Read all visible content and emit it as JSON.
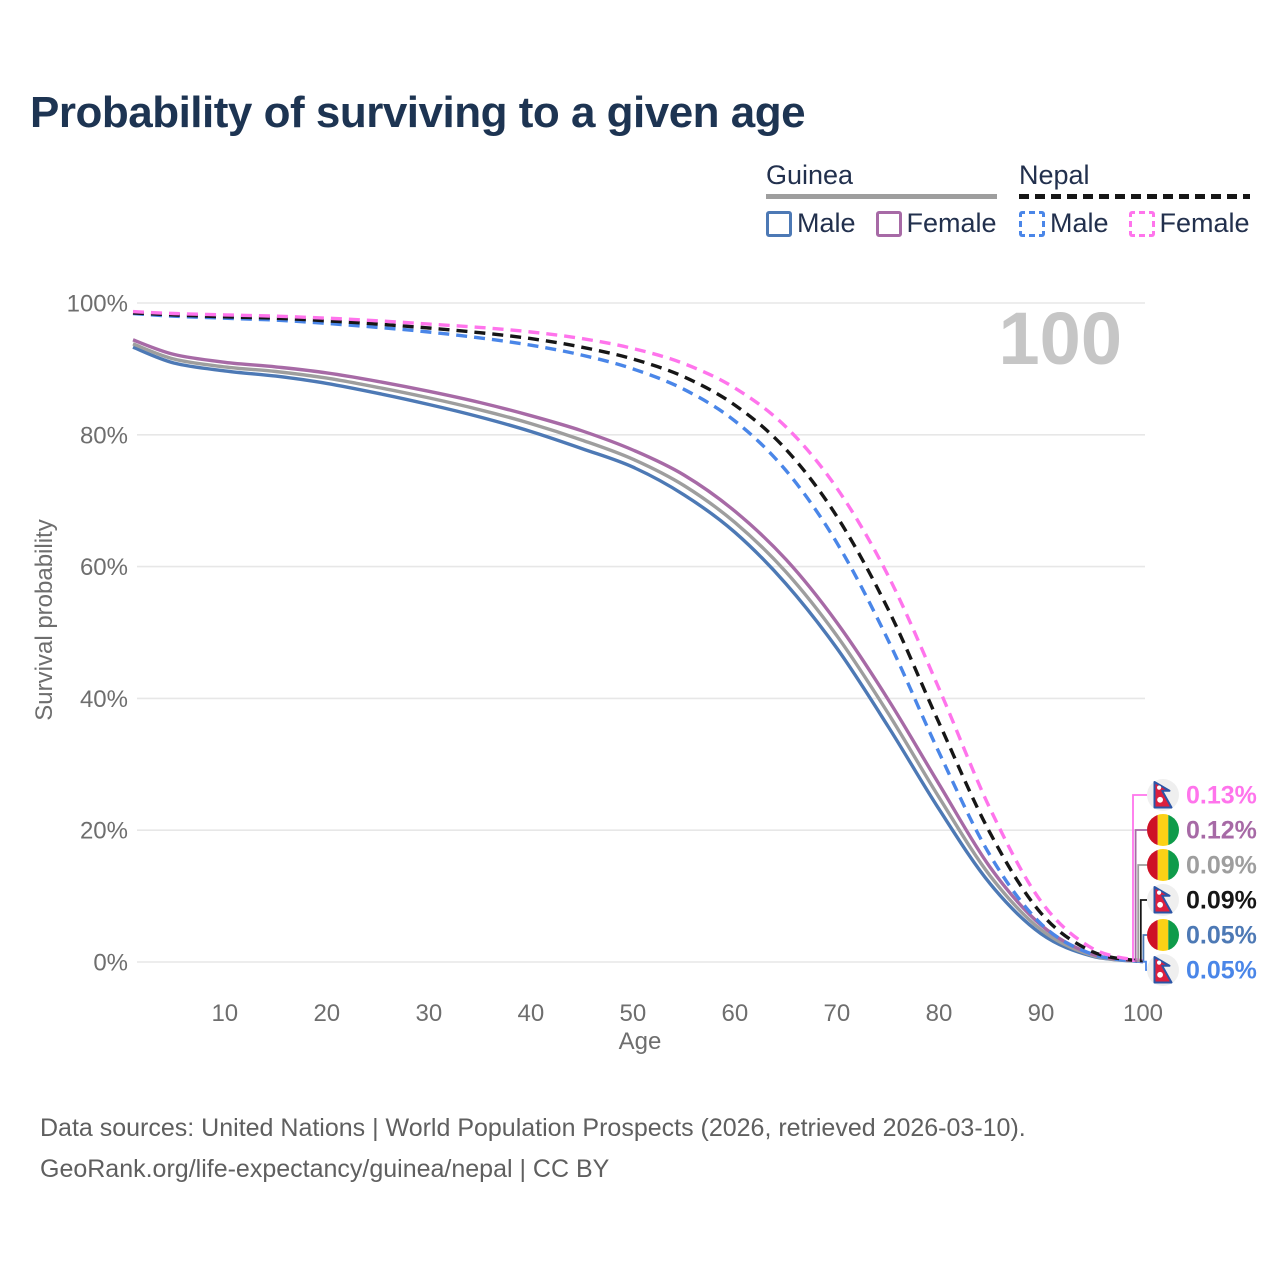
{
  "title": "Probability of surviving to a given age",
  "watermark": "100",
  "legend": {
    "groups": [
      {
        "title": "Guinea",
        "line_style": "solid",
        "underline_color": "#9e9e9e",
        "items": [
          {
            "label": "Male",
            "color": "#4d79b5"
          },
          {
            "label": "Female",
            "color": "#a76aa6"
          }
        ]
      },
      {
        "title": "Nepal",
        "line_style": "dashed",
        "underline_color": "#161616",
        "items": [
          {
            "label": "Male",
            "color": "#4a86e8"
          },
          {
            "label": "Female",
            "color": "#ff74ec"
          }
        ]
      }
    ]
  },
  "chart_data": {
    "type": "line",
    "title": "Probability of surviving to a given age",
    "xlabel": "Age",
    "ylabel": "Survival probability",
    "xlim": [
      1,
      100
    ],
    "ylim": [
      0,
      100
    ],
    "grid": "horizontal",
    "x_ticks": [
      10,
      20,
      30,
      40,
      50,
      60,
      70,
      80,
      90,
      100
    ],
    "y_tick_values": [
      0,
      20,
      40,
      60,
      80,
      100
    ],
    "y_tick_labels": [
      "0%",
      "20%",
      "40%",
      "60%",
      "80%",
      "100%"
    ],
    "x": [
      1,
      5,
      10,
      15,
      20,
      25,
      30,
      35,
      40,
      45,
      50,
      55,
      60,
      65,
      70,
      75,
      80,
      85,
      90,
      95,
      100
    ],
    "series": [
      {
        "name": "Guinea Male",
        "country": "Guinea",
        "sex": "Male",
        "color": "#4d79b5",
        "dashed": false,
        "values": [
          93.3,
          90.9,
          89.7,
          88.9,
          87.8,
          86.3,
          84.6,
          82.7,
          80.5,
          77.9,
          75.1,
          70.9,
          65.2,
          57.4,
          47.6,
          35.8,
          23.2,
          11.9,
          4.3,
          0.9,
          0.05
        ]
      },
      {
        "name": "Guinea",
        "country": "Guinea",
        "sex": "Both",
        "color": "#9e9e9e",
        "dashed": false,
        "values": [
          93.8,
          91.5,
          90.3,
          89.6,
          88.6,
          87.2,
          85.6,
          83.8,
          81.7,
          79.2,
          76.3,
          72.3,
          66.7,
          59.2,
          49.5,
          37.8,
          25.0,
          13.1,
          4.9,
          1.0,
          0.09
        ]
      },
      {
        "name": "Guinea Female",
        "country": "Guinea",
        "sex": "Female",
        "color": "#a76aa6",
        "dashed": false,
        "values": [
          94.4,
          92.2,
          91.0,
          90.3,
          89.4,
          88.1,
          86.6,
          84.9,
          82.9,
          80.6,
          77.7,
          73.9,
          68.4,
          61.1,
          51.5,
          39.9,
          27.0,
          14.4,
          5.6,
          1.2,
          0.12
        ]
      },
      {
        "name": "Nepal Male",
        "country": "Nepal",
        "sex": "Male",
        "color": "#4a86e8",
        "dashed": true,
        "values": [
          98.4,
          98.0,
          97.7,
          97.4,
          96.9,
          96.3,
          95.6,
          94.7,
          93.6,
          92.1,
          90.0,
          86.9,
          82.1,
          74.6,
          63.6,
          48.9,
          31.8,
          16.2,
          5.8,
          1.2,
          0.05
        ]
      },
      {
        "name": "Nepal",
        "country": "Nepal",
        "sex": "Both",
        "color": "#161616",
        "dashed": true,
        "values": [
          98.5,
          98.2,
          97.9,
          97.7,
          97.3,
          96.8,
          96.2,
          95.5,
          94.6,
          93.3,
          91.5,
          88.8,
          84.5,
          77.8,
          67.6,
          53.6,
          36.3,
          19.6,
          7.4,
          1.6,
          0.09
        ]
      },
      {
        "name": "Nepal Female",
        "country": "Nepal",
        "sex": "Female",
        "color": "#ff74ec",
        "dashed": true,
        "values": [
          98.7,
          98.4,
          98.2,
          98.0,
          97.7,
          97.3,
          96.8,
          96.3,
          95.6,
          94.6,
          93.1,
          90.8,
          87.1,
          81.2,
          71.9,
          58.7,
          41.5,
          23.3,
          9.2,
          2.1,
          0.13
        ]
      }
    ]
  },
  "end_labels": [
    {
      "flag": "nepal",
      "value": "0.13%",
      "series": "Nepal Female"
    },
    {
      "flag": "guinea",
      "value": "0.12%",
      "series": "Guinea Female"
    },
    {
      "flag": "guinea",
      "value": "0.09%",
      "series": "Guinea"
    },
    {
      "flag": "nepal",
      "value": "0.09%",
      "series": "Nepal"
    },
    {
      "flag": "guinea",
      "value": "0.05%",
      "series": "Guinea Male"
    },
    {
      "flag": "nepal",
      "value": "0.05%",
      "series": "Nepal Male"
    }
  ],
  "footer": {
    "line1": "Data sources: United Nations | World Population Prospects (2026, retrieved 2026-03-10).",
    "line2": "GeoRank.org/life-expectancy/guinea/nepal | CC BY"
  }
}
